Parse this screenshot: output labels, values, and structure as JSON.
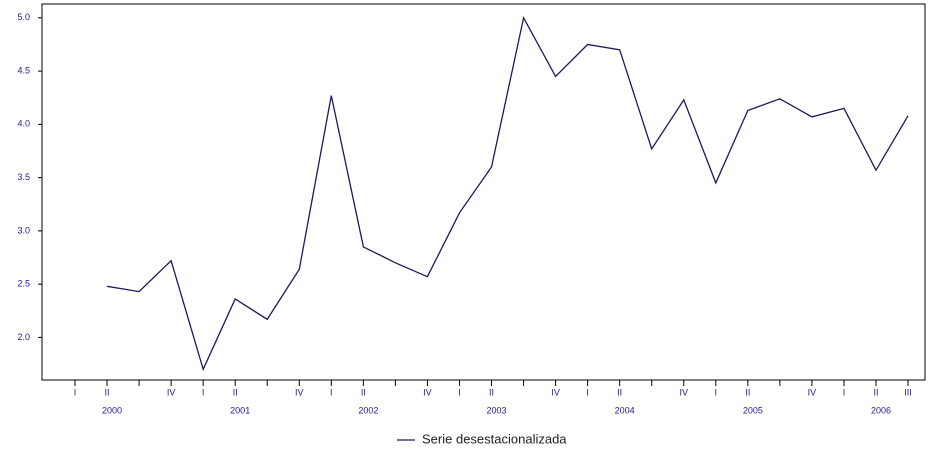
{
  "chart_data": {
    "type": "line",
    "categories": [
      "I",
      "II",
      null,
      "IV",
      "I",
      "II",
      null,
      "IV",
      "I",
      "II",
      null,
      "IV",
      "I",
      "II",
      null,
      "IV",
      "I",
      "II",
      null,
      "IV",
      "I",
      "II",
      null,
      "IV",
      "I",
      "II",
      "III"
    ],
    "years": [
      "2000",
      "2001",
      "2002",
      "2003",
      "2004",
      "2005",
      "2006"
    ],
    "series": [
      {
        "name": "Serie desestacionalizada",
        "color": "#1a1a5c",
        "values": [
          null,
          2.48,
          2.43,
          2.72,
          1.7,
          2.36,
          2.17,
          2.64,
          4.27,
          2.85,
          2.7,
          2.57,
          3.17,
          3.6,
          5.0,
          4.45,
          4.75,
          4.7,
          3.77,
          4.23,
          3.45,
          4.13,
          4.24,
          4.07,
          4.15,
          3.57,
          4.08
        ]
      }
    ],
    "ylim": [
      1.6,
      5.13
    ],
    "yticks": [
      {
        "value": 2,
        "label": "2.0"
      },
      2.5,
      {
        "value": 3,
        "label": "3.0"
      },
      3.5,
      {
        "value": 4,
        "label": "4.0"
      },
      4.5,
      {
        "value": 5,
        "label": "5.0"
      }
    ],
    "grid": false,
    "legend": "bottom"
  }
}
